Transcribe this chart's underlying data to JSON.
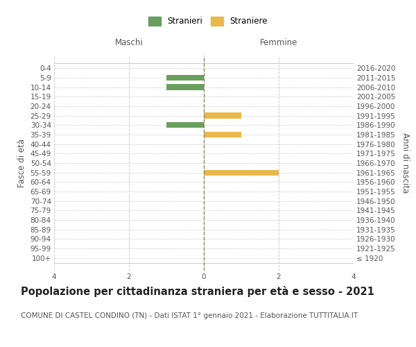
{
  "age_groups": [
    "100+",
    "95-99",
    "90-94",
    "85-89",
    "80-84",
    "75-79",
    "70-74",
    "65-69",
    "60-64",
    "55-59",
    "50-54",
    "45-49",
    "40-44",
    "35-39",
    "30-34",
    "25-29",
    "20-24",
    "15-19",
    "10-14",
    "5-9",
    "0-4"
  ],
  "birth_years": [
    "≤ 1920",
    "1921-1925",
    "1926-1930",
    "1931-1935",
    "1936-1940",
    "1941-1945",
    "1946-1950",
    "1951-1955",
    "1956-1960",
    "1961-1965",
    "1966-1970",
    "1971-1975",
    "1976-1980",
    "1981-1985",
    "1986-1990",
    "1991-1995",
    "1996-2000",
    "2001-2005",
    "2006-2010",
    "2011-2015",
    "2016-2020"
  ],
  "males": [
    0,
    0,
    0,
    0,
    0,
    0,
    0,
    0,
    0,
    0,
    0,
    0,
    0,
    0,
    1,
    0,
    0,
    0,
    1,
    1,
    0
  ],
  "females": [
    0,
    0,
    0,
    0,
    0,
    0,
    0,
    0,
    0,
    2,
    0,
    0,
    0,
    1,
    0,
    1,
    0,
    0,
    0,
    0,
    0
  ],
  "male_color": "#6a9e5e",
  "female_color": "#e8b84b",
  "xlim": 4,
  "title": "Popolazione per cittadinanza straniera per età e sesso - 2021",
  "subtitle": "COMUNE DI CASTEL CONDINO (TN) - Dati ISTAT 1° gennaio 2021 - Elaborazione TUTTITALIA.IT",
  "ylabel_left": "Fasce di età",
  "ylabel_right": "Anni di nascita",
  "xlabel_maschi": "Maschi",
  "xlabel_femmine": "Femmine",
  "legend_male": "Stranieri",
  "legend_female": "Straniere",
  "background_color": "#ffffff",
  "grid_color": "#cccccc",
  "title_fontsize": 10.5,
  "subtitle_fontsize": 7.5,
  "tick_fontsize": 7.5,
  "label_fontsize": 8.5,
  "bar_height": 0.6
}
